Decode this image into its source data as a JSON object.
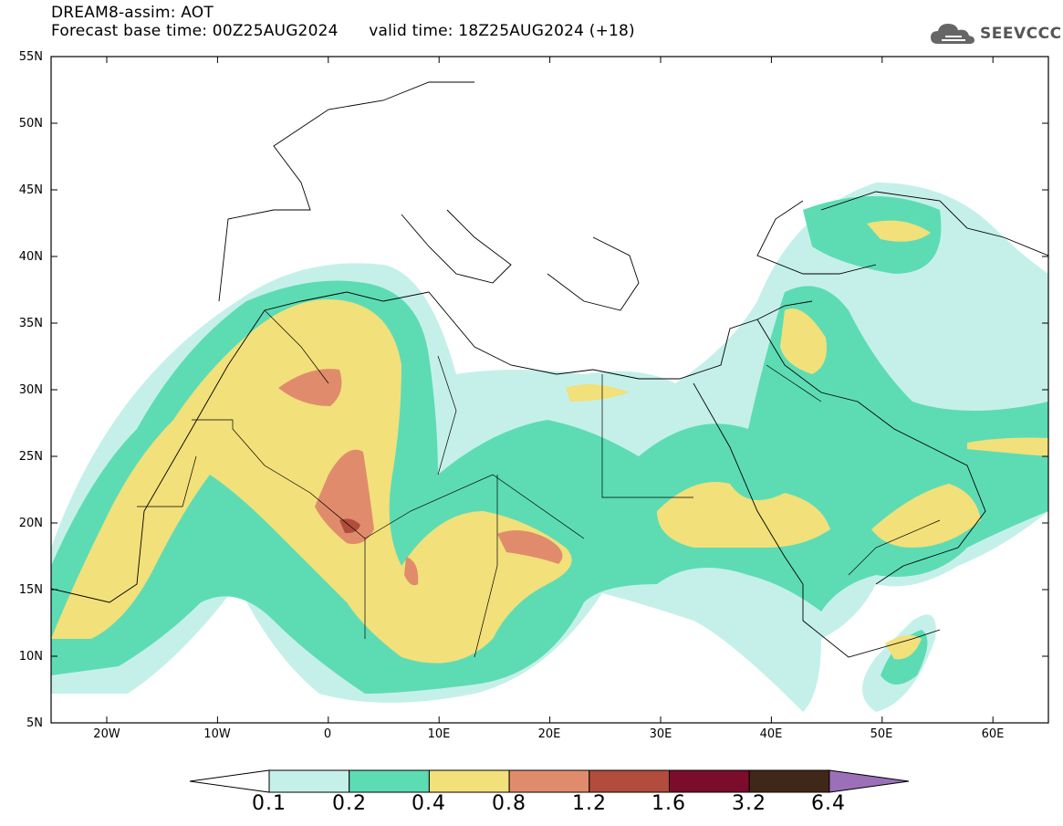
{
  "header": {
    "title_line1": "DREAM8-assim: AOT",
    "base_time_label": "Forecast base time: 00Z25AUG2024",
    "valid_time_label": "valid time: 18Z25AUG2024 (+18)"
  },
  "logo": {
    "icon": "cloud-icon",
    "text": "SEEVCCC"
  },
  "map": {
    "variable": "AOT",
    "extent": {
      "lon_min": -25,
      "lon_max": 65,
      "lat_min": 5,
      "lat_max": 55
    },
    "lat_ticks": [
      "55N",
      "50N",
      "45N",
      "40N",
      "35N",
      "30N",
      "25N",
      "20N",
      "15N",
      "10N",
      "5N"
    ],
    "lon_ticks": [
      "20W",
      "10W",
      "0",
      "10E",
      "20E",
      "30E",
      "40E",
      "50E",
      "60E"
    ]
  },
  "legend": {
    "levels": [
      "0.1",
      "0.2",
      "0.4",
      "0.8",
      "1.2",
      "1.6",
      "3.2",
      "6.4"
    ],
    "colors": [
      "#c5f0ea",
      "#5ddcb4",
      "#f2e07a",
      "#e08c6c",
      "#b24c3c",
      "#7c0c2c",
      "#402818",
      "#9c70b8"
    ]
  }
}
